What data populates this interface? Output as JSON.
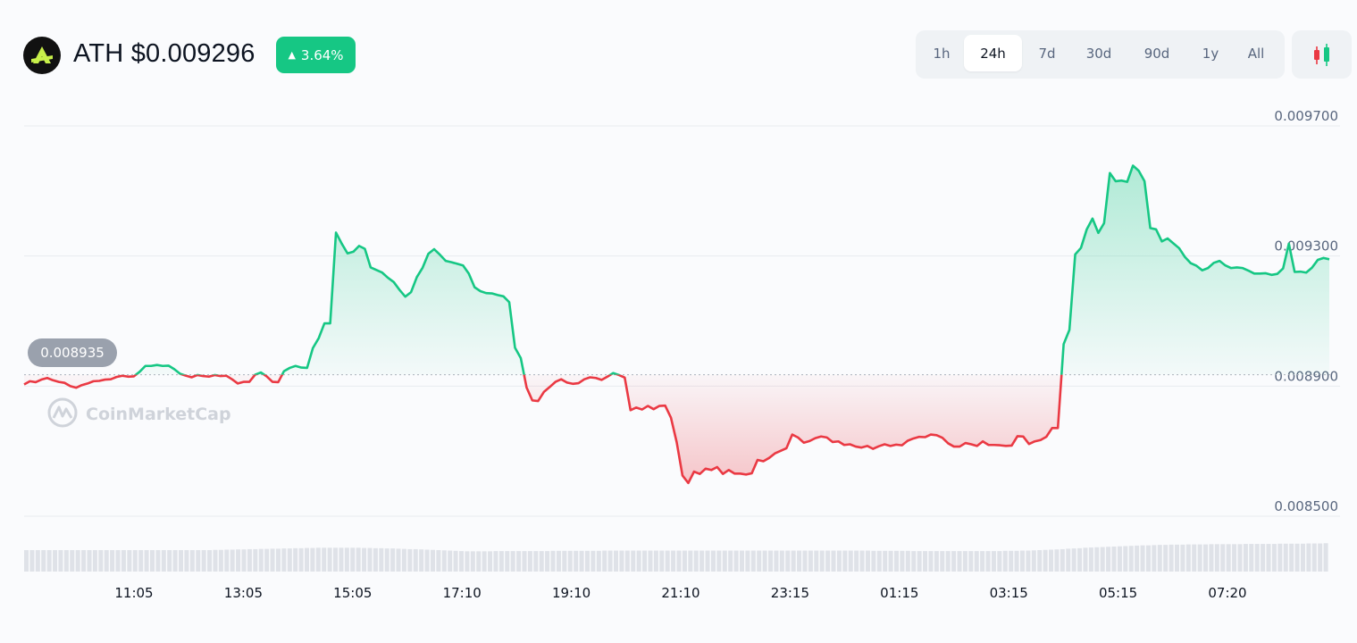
{
  "header": {
    "token_symbol_price": "ATH $0.009296",
    "change_percent": "3.64%",
    "change_direction": "up",
    "icon": "ath-logo-icon"
  },
  "time_ranges": [
    {
      "label": "1h",
      "active": false
    },
    {
      "label": "24h",
      "active": true
    },
    {
      "label": "7d",
      "active": false
    },
    {
      "label": "30d",
      "active": false
    },
    {
      "label": "90d",
      "active": false
    },
    {
      "label": "1y",
      "active": false
    },
    {
      "label": "All",
      "active": false
    }
  ],
  "chart_toggle_icon": "candlestick-icon",
  "watermark": "CoinMarketCap",
  "colors": {
    "up": "#16c784",
    "down": "#ea3943",
    "badge": "#16c784",
    "grid": "#e8ebef",
    "volume": "#dfe2e8",
    "baseline_label_bg": "#9aa1ad"
  },
  "chart_data": {
    "type": "area",
    "baseline": 0.008935,
    "baseline_label": "0.008935",
    "ylim": [
      0.0085,
      0.0097
    ],
    "y_ticks": [
      "0.009700",
      "0.009300",
      "0.008900",
      "0.008500"
    ],
    "x_ticks": [
      "11:05",
      "13:05",
      "15:05",
      "17:10",
      "19:10",
      "21:10",
      "23:15",
      "01:15",
      "03:15",
      "05:15",
      "07:20"
    ],
    "grid": true,
    "series": [
      {
        "values": [
          0.008905,
          0.008915,
          0.008912,
          0.00892,
          0.008925,
          0.008918,
          0.008913,
          0.00891,
          0.0089,
          0.008895,
          0.008903,
          0.008908,
          0.008915,
          0.008916,
          0.00892,
          0.008921,
          0.008928,
          0.008932,
          0.008929,
          0.00893,
          0.008944,
          0.008962,
          0.008962,
          0.008965,
          0.008962,
          0.008963,
          0.008952,
          0.008938,
          0.008932,
          0.008927,
          0.008934,
          0.008931,
          0.008929,
          0.008934,
          0.008931,
          0.008932,
          0.008921,
          0.008908,
          0.008913,
          0.008913,
          0.008935,
          0.008942,
          0.00893,
          0.008913,
          0.008912,
          0.008946,
          0.008956,
          0.008962,
          0.008957,
          0.008956,
          0.009017,
          0.009047,
          0.009093,
          0.009093,
          0.009372,
          0.009338,
          0.009308,
          0.009313,
          0.009331,
          0.009322,
          0.009265,
          0.009257,
          0.009249,
          0.009233,
          0.00922,
          0.009196,
          0.009175,
          0.009189,
          0.009235,
          0.009264,
          0.009307,
          0.009321,
          0.009304,
          0.009285,
          0.009281,
          0.009276,
          0.009271,
          0.009246,
          0.009204,
          0.009192,
          0.009186,
          0.009185,
          0.00918,
          0.009176,
          0.009158,
          0.009018,
          0.008986,
          0.008896,
          0.008856,
          0.008854,
          0.008882,
          0.008897,
          0.008913,
          0.008921,
          0.008911,
          0.008907,
          0.008909,
          0.008921,
          0.008927,
          0.008925,
          0.008919,
          0.008929,
          0.00894,
          0.008934,
          0.008926,
          0.008826,
          0.008834,
          0.008828,
          0.008839,
          0.008829,
          0.008839,
          0.00884,
          0.008803,
          0.008727,
          0.008625,
          0.008602,
          0.008637,
          0.00863,
          0.008646,
          0.008642,
          0.008651,
          0.00863,
          0.008642,
          0.008631,
          0.008631,
          0.008628,
          0.008632,
          0.008673,
          0.008669,
          0.008679,
          0.008693,
          0.008701,
          0.008709,
          0.008751,
          0.008742,
          0.008726,
          0.008731,
          0.00874,
          0.008745,
          0.008742,
          0.008728,
          0.00873,
          0.008719,
          0.008721,
          0.008714,
          0.008711,
          0.008716,
          0.008707,
          0.008715,
          0.008721,
          0.008716,
          0.00872,
          0.008718,
          0.008732,
          0.008739,
          0.008744,
          0.008743,
          0.008751,
          0.008749,
          0.008741,
          0.008724,
          0.008714,
          0.008714,
          0.008725,
          0.008721,
          0.008716,
          0.00873,
          0.008719,
          0.008719,
          0.008718,
          0.008716,
          0.008717,
          0.008746,
          0.008745,
          0.008722,
          0.00873,
          0.008734,
          0.008744,
          0.008771,
          0.008771,
          0.009029,
          0.009073,
          0.009305,
          0.009325,
          0.009382,
          0.009415,
          0.009371,
          0.009401,
          0.009555,
          0.00953,
          0.009532,
          0.009528,
          0.009578,
          0.009562,
          0.00953,
          0.009386,
          0.009382,
          0.009345,
          0.009354,
          0.009339,
          0.009324,
          0.009297,
          0.009278,
          0.00927,
          0.009256,
          0.009263,
          0.009279,
          0.009285,
          0.009271,
          0.009263,
          0.009265,
          0.009263,
          0.009255,
          0.009246,
          0.009246,
          0.009247,
          0.009242,
          0.009245,
          0.009262,
          0.009338,
          0.009251,
          0.009252,
          0.009249,
          0.009264,
          0.009288,
          0.009294,
          0.00929
        ]
      }
    ],
    "volume": [
      0.9,
      0.9,
      0.9,
      0.9,
      0.9,
      0.9,
      0.9,
      0.9,
      0.9,
      0.9,
      0.9,
      0.9,
      0.9,
      0.9,
      0.9,
      0.9,
      0.9,
      0.9,
      0.9,
      0.9,
      0.9,
      0.9,
      0.9,
      0.9,
      0.9,
      0.9,
      0.9,
      0.9,
      0.9,
      0.9,
      0.9,
      0.9,
      0.9,
      0.91,
      0.91,
      0.92,
      0.92,
      0.93,
      0.93,
      0.94,
      0.94,
      0.95,
      0.95,
      0.96,
      0.96,
      0.97,
      0.97,
      0.98,
      0.98,
      0.99,
      0.99,
      1.0,
      1.0,
      1.0,
      1.0,
      1.0,
      1.0,
      1.0,
      1.0,
      0.99,
      0.99,
      0.98,
      0.98,
      0.97,
      0.97,
      0.96,
      0.95,
      0.94,
      0.94,
      0.93,
      0.92,
      0.91,
      0.9,
      0.89,
      0.88,
      0.87,
      0.86,
      0.85,
      0.85,
      0.85,
      0.85,
      0.85,
      0.86,
      0.86,
      0.86,
      0.86,
      0.86,
      0.86,
      0.86,
      0.86,
      0.86,
      0.86,
      0.87,
      0.87,
      0.87,
      0.87,
      0.87,
      0.87,
      0.87,
      0.87,
      0.87,
      0.88,
      0.88,
      0.88,
      0.88,
      0.88,
      0.88,
      0.88,
      0.88,
      0.88,
      0.88,
      0.88,
      0.88,
      0.88,
      0.88,
      0.88,
      0.88,
      0.88,
      0.88,
      0.88,
      0.88,
      0.88,
      0.88,
      0.88,
      0.88,
      0.88,
      0.88,
      0.88,
      0.88,
      0.88,
      0.88,
      0.88,
      0.88,
      0.88,
      0.88,
      0.88,
      0.88,
      0.88,
      0.88,
      0.88,
      0.88,
      0.88,
      0.88,
      0.88,
      0.88,
      0.88,
      0.88,
      0.88,
      0.87,
      0.87,
      0.87,
      0.87,
      0.87,
      0.87,
      0.87,
      0.86,
      0.86,
      0.86,
      0.86,
      0.86,
      0.86,
      0.86,
      0.86,
      0.86,
      0.86,
      0.86,
      0.86,
      0.86,
      0.86,
      0.86,
      0.86,
      0.87,
      0.87,
      0.87,
      0.88,
      0.88,
      0.89,
      0.9,
      0.91,
      0.92,
      0.93,
      0.94,
      0.96,
      0.97,
      0.98,
      1.0,
      1.01,
      1.02,
      1.03,
      1.04,
      1.05,
      1.06,
      1.07,
      1.08,
      1.09,
      1.1,
      1.1,
      1.11,
      1.12,
      1.12,
      1.13,
      1.13,
      1.13,
      1.14,
      1.14,
      1.14,
      1.14,
      1.15,
      1.15,
      1.15,
      1.15,
      1.15,
      1.15,
      1.16,
      1.16,
      1.16,
      1.16,
      1.16,
      1.16,
      1.17,
      1.17,
      1.17,
      1.17,
      1.17,
      1.18,
      1.18,
      1.18,
      1.19
    ]
  }
}
